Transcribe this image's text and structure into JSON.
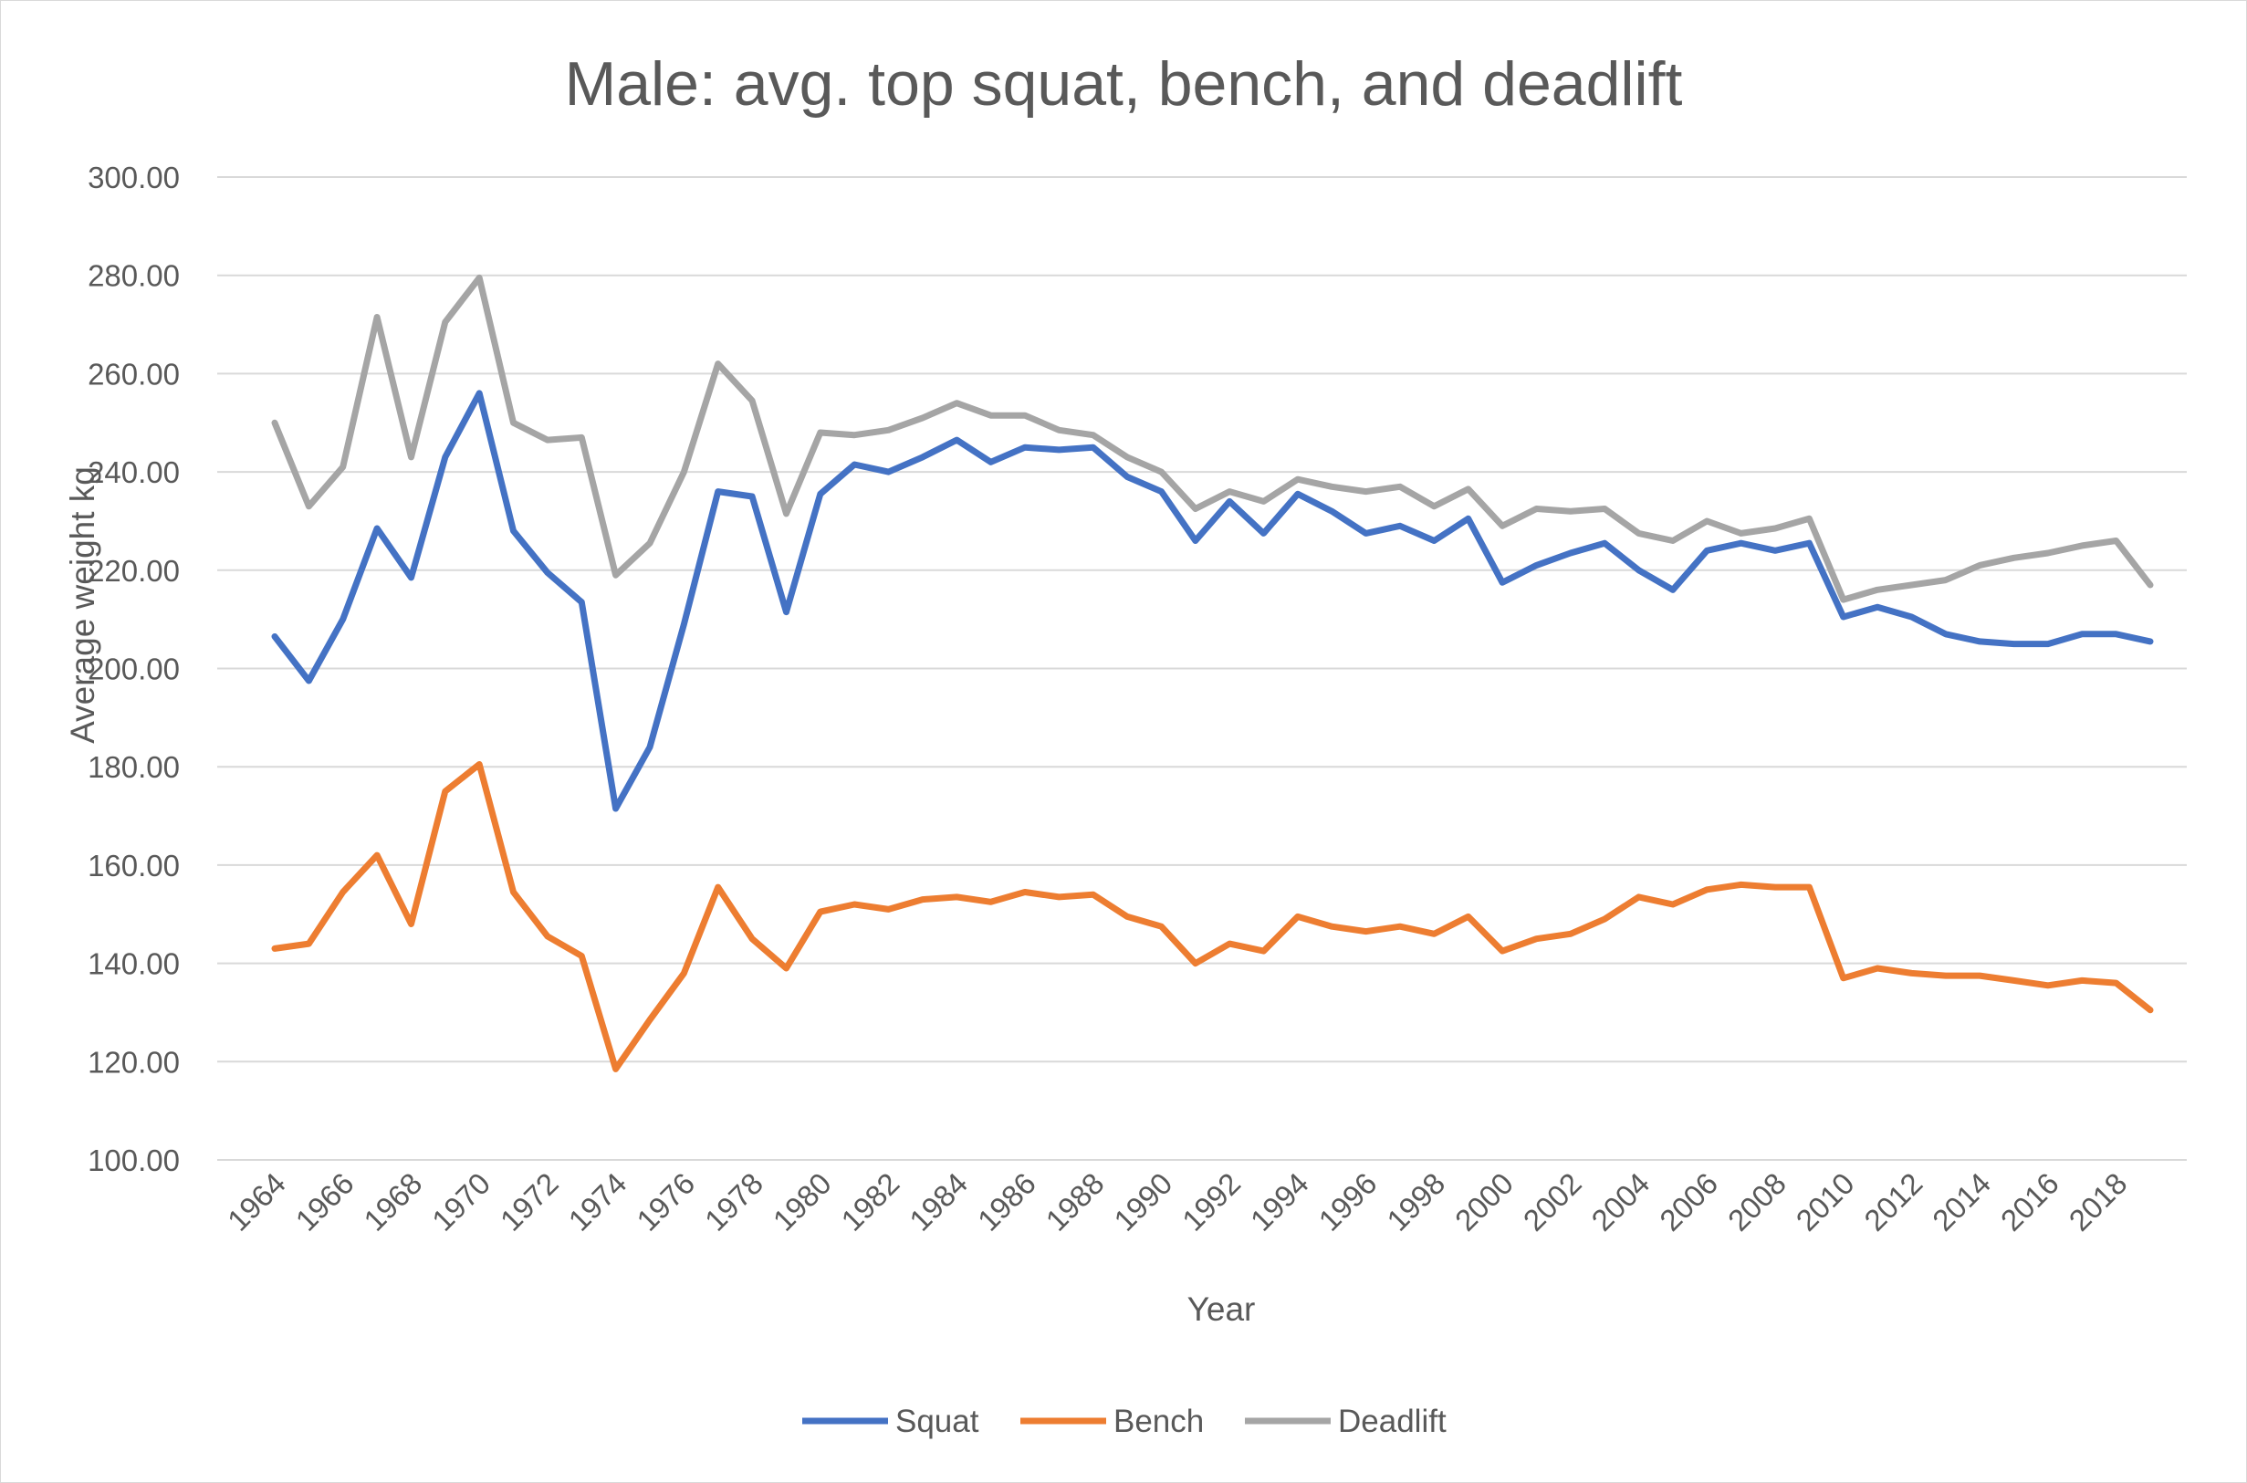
{
  "chart_data": {
    "type": "line",
    "title": "Male: avg. top squat, bench, and deadlift",
    "xlabel": "Year",
    "ylabel": "Average weight kg",
    "ylim": [
      100,
      300
    ],
    "ytick_step": 20,
    "ytick_decimals": 2,
    "grid": "horizontal",
    "legend_position": "bottom",
    "x": [
      1964,
      1965,
      1966,
      1967,
      1968,
      1969,
      1970,
      1971,
      1972,
      1973,
      1974,
      1975,
      1976,
      1977,
      1978,
      1979,
      1980,
      1981,
      1982,
      1983,
      1984,
      1985,
      1986,
      1987,
      1988,
      1989,
      1990,
      1991,
      1992,
      1993,
      1994,
      1995,
      1996,
      1997,
      1998,
      1999,
      2000,
      2001,
      2002,
      2003,
      2004,
      2005,
      2006,
      2007,
      2008,
      2009,
      2010,
      2011,
      2012,
      2013,
      2014,
      2015,
      2016,
      2017,
      2018,
      2019
    ],
    "xtick_labels": [
      "1964",
      "1966",
      "1968",
      "1970",
      "1972",
      "1974",
      "1976",
      "1978",
      "1980",
      "1982",
      "1984",
      "1986",
      "1988",
      "1990",
      "1992",
      "1994",
      "1996",
      "1998",
      "2000",
      "2002",
      "2004",
      "2006",
      "2008",
      "2010",
      "2012",
      "2014",
      "2016",
      "2018"
    ],
    "series": [
      {
        "name": "Squat",
        "color": "#4472c4",
        "values": [
          206.5,
          197.5,
          210,
          228.5,
          218.5,
          243,
          256,
          228,
          219.5,
          213.5,
          171.5,
          184,
          209,
          236,
          235,
          211.5,
          235.5,
          241.5,
          240,
          243,
          246.5,
          242,
          245,
          244.5,
          245,
          239,
          236,
          226,
          234,
          227.5,
          235.5,
          232,
          227.5,
          229,
          226,
          230.5,
          217.5,
          221,
          223.5,
          225.5,
          220,
          216,
          224,
          225.5,
          224,
          225.5,
          210.5,
          212.5,
          210.5,
          207,
          205.5,
          205,
          205,
          207,
          207,
          205.5
        ]
      },
      {
        "name": "Bench",
        "color": "#ed7d31",
        "values": [
          143,
          144,
          154.5,
          162,
          148,
          175,
          180.5,
          154.5,
          145.5,
          141.5,
          118.5,
          128.5,
          138,
          155.5,
          145,
          139,
          150.5,
          152,
          151,
          153,
          153.5,
          152.5,
          154.5,
          153.5,
          154,
          149.5,
          147.5,
          140,
          144,
          142.5,
          149.5,
          147.5,
          146.5,
          147.5,
          146,
          149.5,
          142.5,
          145,
          146,
          149,
          153.5,
          152,
          155,
          156,
          155.5,
          155.5,
          137,
          139,
          138,
          137.5,
          137.5,
          136.5,
          135.5,
          136.5,
          136,
          130.5
        ]
      },
      {
        "name": "Deadlift",
        "color": "#a5a5a5",
        "values": [
          250,
          233,
          241,
          271.5,
          243,
          270.5,
          279.5,
          250,
          246.5,
          247,
          219,
          225.5,
          240,
          262,
          254.5,
          231.5,
          248,
          247.5,
          248.5,
          251,
          254,
          251.5,
          251.5,
          248.5,
          247.5,
          243,
          240,
          232.5,
          236,
          234,
          238.5,
          237,
          236,
          237,
          233,
          236.5,
          229,
          232.5,
          232,
          232.5,
          227.5,
          226,
          230,
          227.5,
          228.5,
          230.5,
          214,
          216,
          217,
          218,
          221,
          222.5,
          223.5,
          225,
          226,
          217
        ]
      }
    ]
  }
}
